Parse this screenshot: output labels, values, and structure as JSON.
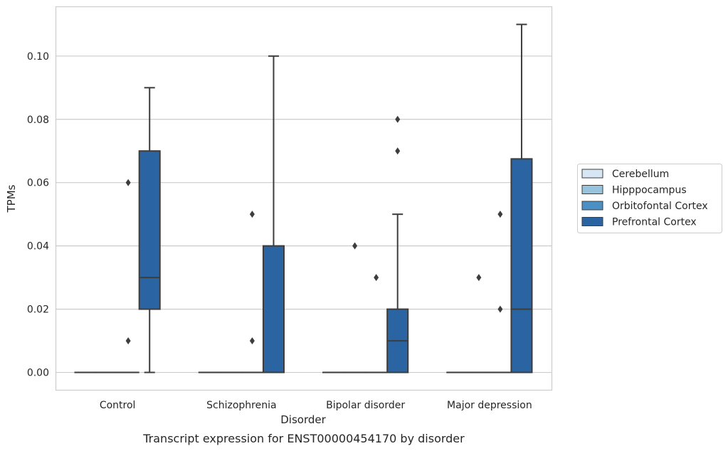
{
  "chart_data": {
    "type": "box",
    "title": "",
    "caption": "Transcript expression for ENST00000454170 by disorder",
    "xlabel": "Disorder",
    "ylabel": "TPMs",
    "ylim": [
      -0.0055,
      0.1157
    ],
    "yticks": [
      0.0,
      0.02,
      0.04,
      0.06,
      0.08,
      0.1
    ],
    "ytick_labels": [
      "0.00",
      "0.02",
      "0.04",
      "0.06",
      "0.08",
      "0.10"
    ],
    "grid": true,
    "legend_position": "right",
    "categories": [
      "Control",
      "Schizophrenia",
      "Bipolar disorder",
      "Major depression"
    ],
    "series": [
      {
        "name": "Cerebellum",
        "color": "#d6e6f4",
        "boxes": [
          {
            "min": 0,
            "q1": 0,
            "median": 0,
            "q3": 0,
            "max": 0,
            "outliers": []
          },
          {
            "min": 0,
            "q1": 0,
            "median": 0,
            "q3": 0,
            "max": 0,
            "outliers": []
          },
          {
            "min": 0,
            "q1": 0,
            "median": 0,
            "q3": 0,
            "max": 0,
            "outliers": []
          },
          {
            "min": 0,
            "q1": 0,
            "median": 0,
            "q3": 0,
            "max": 0,
            "outliers": []
          }
        ]
      },
      {
        "name": "Hipppocampus",
        "color": "#97c3dc",
        "boxes": [
          {
            "min": 0,
            "q1": 0,
            "median": 0,
            "q3": 0,
            "max": 0,
            "outliers": []
          },
          {
            "min": 0,
            "q1": 0,
            "median": 0,
            "q3": 0,
            "max": 0,
            "outliers": []
          },
          {
            "min": 0,
            "q1": 0,
            "median": 0,
            "q3": 0,
            "max": 0,
            "outliers": [
              0.04
            ]
          },
          {
            "min": 0,
            "q1": 0,
            "median": 0,
            "q3": 0,
            "max": 0,
            "outliers": [
              0.03
            ]
          }
        ]
      },
      {
        "name": "Orbitofontal Cortex",
        "color": "#4a90c4",
        "boxes": [
          {
            "min": 0,
            "q1": 0,
            "median": 0,
            "q3": 0,
            "max": 0,
            "outliers": [
              0.06,
              0.01
            ]
          },
          {
            "min": 0,
            "q1": 0,
            "median": 0,
            "q3": 0,
            "max": 0,
            "outliers": [
              0.05,
              0.01
            ]
          },
          {
            "min": 0,
            "q1": 0,
            "median": 0,
            "q3": 0,
            "max": 0,
            "outliers": [
              0.03
            ]
          },
          {
            "min": 0,
            "q1": 0,
            "median": 0,
            "q3": 0,
            "max": 0,
            "outliers": [
              0.05,
              0.02
            ]
          }
        ]
      },
      {
        "name": "Prefrontal Cortex",
        "color": "#2a64a2",
        "boxes": [
          {
            "min": 0,
            "q1": 0.02,
            "median": 0.03,
            "q3": 0.07,
            "max": 0.09,
            "outliers": []
          },
          {
            "min": 0,
            "q1": 0,
            "median": 0,
            "q3": 0.04,
            "max": 0.1,
            "outliers": []
          },
          {
            "min": 0,
            "q1": 0,
            "median": 0.01,
            "q3": 0.02,
            "max": 0.05,
            "outliers": [
              0.07,
              0.08
            ]
          },
          {
            "min": 0,
            "q1": 0,
            "median": 0.02,
            "q3": 0.0675,
            "max": 0.11,
            "outliers": []
          }
        ]
      }
    ]
  }
}
